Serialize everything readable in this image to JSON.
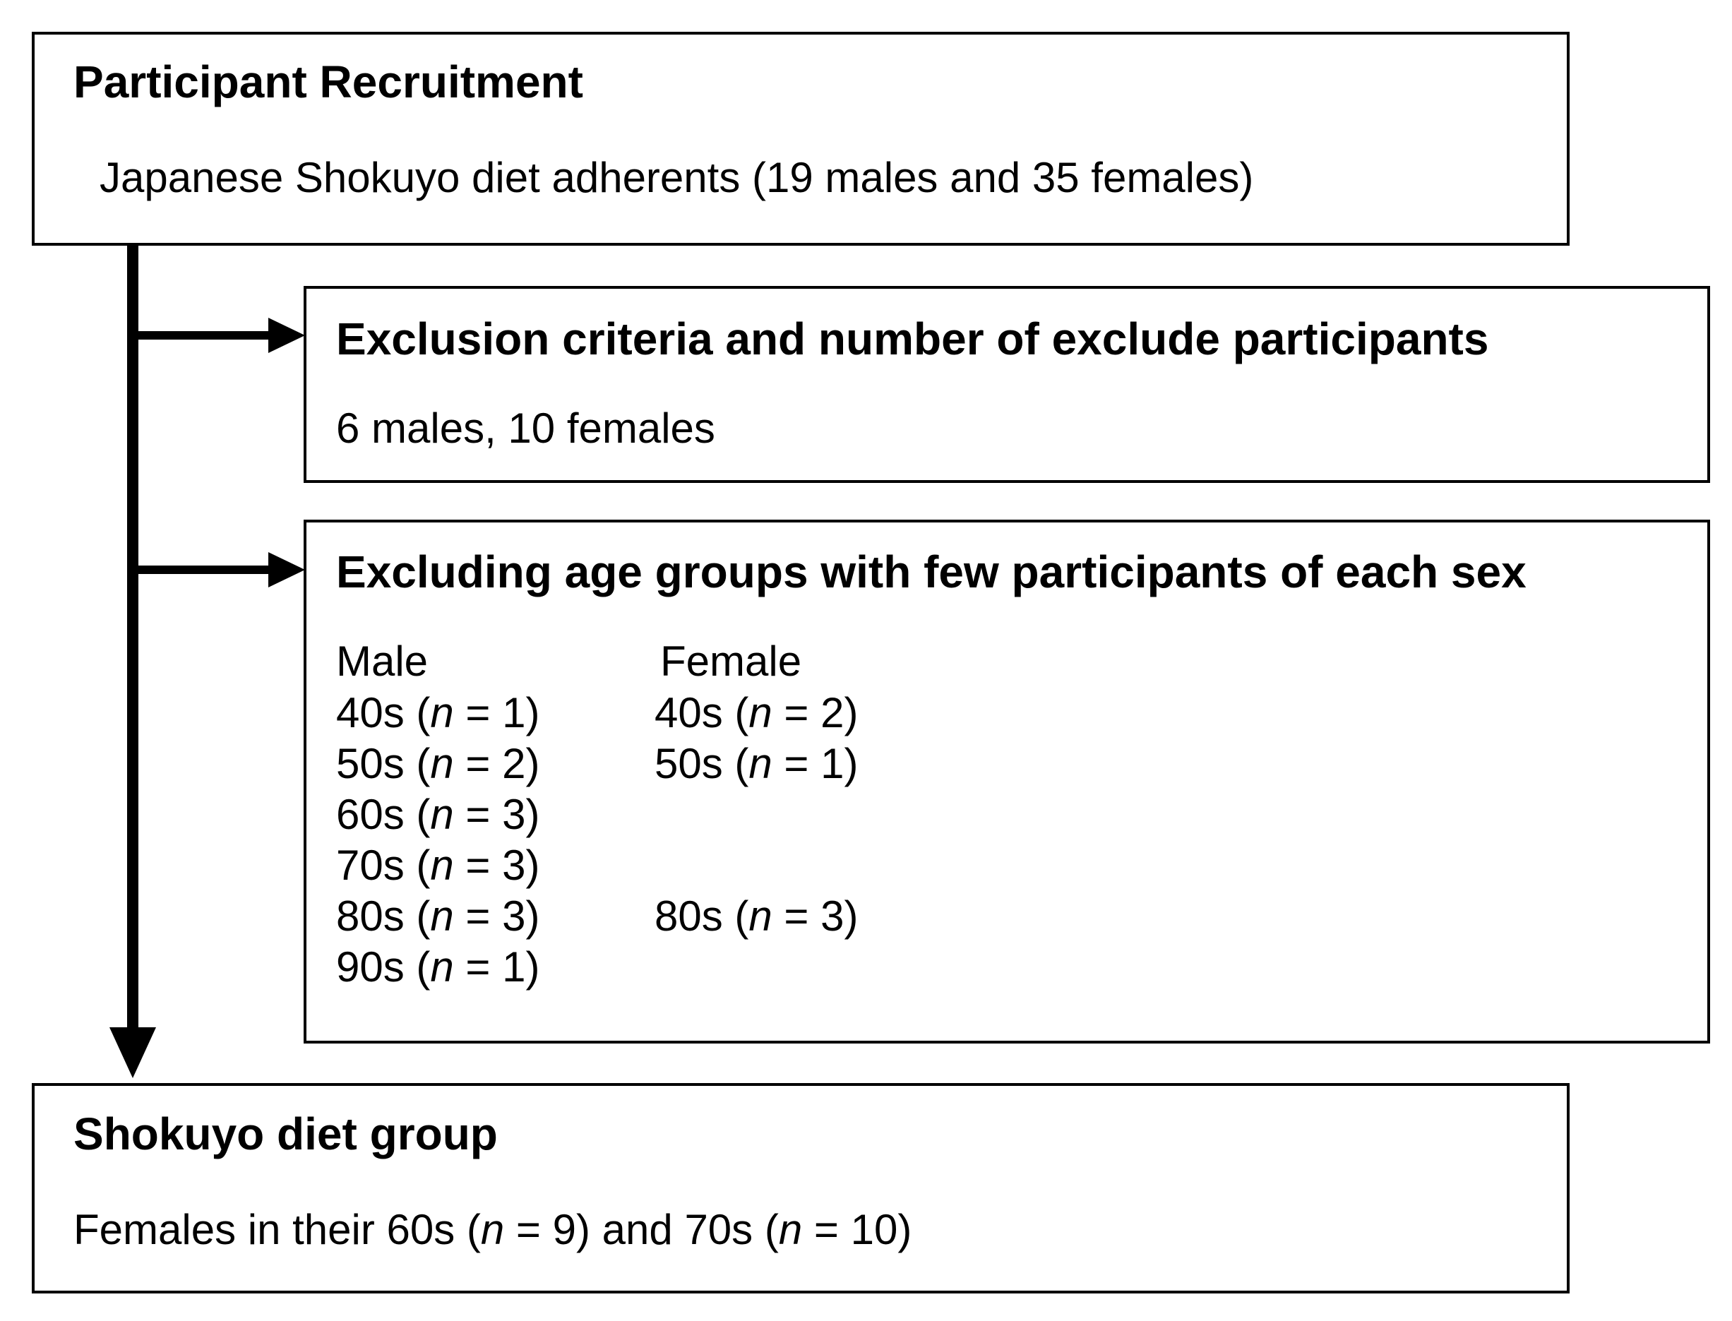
{
  "recruitment": {
    "title": "Participant Recruitment",
    "text": "Japanese Shokuyo diet adherents (19 males and 35 females)"
  },
  "exclusion": {
    "title": "Exclusion criteria and number of exclude participants",
    "text": "6 males, 10 females"
  },
  "age_exclusion": {
    "title": "Excluding age groups with few participants of each sex",
    "male": {
      "header": "Male",
      "rows": [
        [
          "40s (",
          "n",
          " = 1)"
        ],
        [
          "50s (",
          "n",
          " = 2)"
        ],
        [
          "60s (",
          "n",
          " = 3)"
        ],
        [
          "70s (",
          "n",
          " = 3)"
        ],
        [
          "80s (",
          "n",
          " = 3)"
        ],
        [
          "90s (",
          "n",
          " = 1)"
        ]
      ]
    },
    "female": {
      "header": "Female",
      "rows": [
        [
          "40s (",
          "n",
          " = 2)"
        ],
        [
          "50s (",
          "n",
          " = 1)"
        ],
        null,
        null,
        [
          "80s (",
          "n",
          " = 3)"
        ],
        null
      ]
    }
  },
  "result": {
    "title": "Shokuyo diet group",
    "text": [
      "Females in their 60s (",
      "n",
      " = 9) and 70s (",
      "n",
      " = 10)"
    ]
  }
}
